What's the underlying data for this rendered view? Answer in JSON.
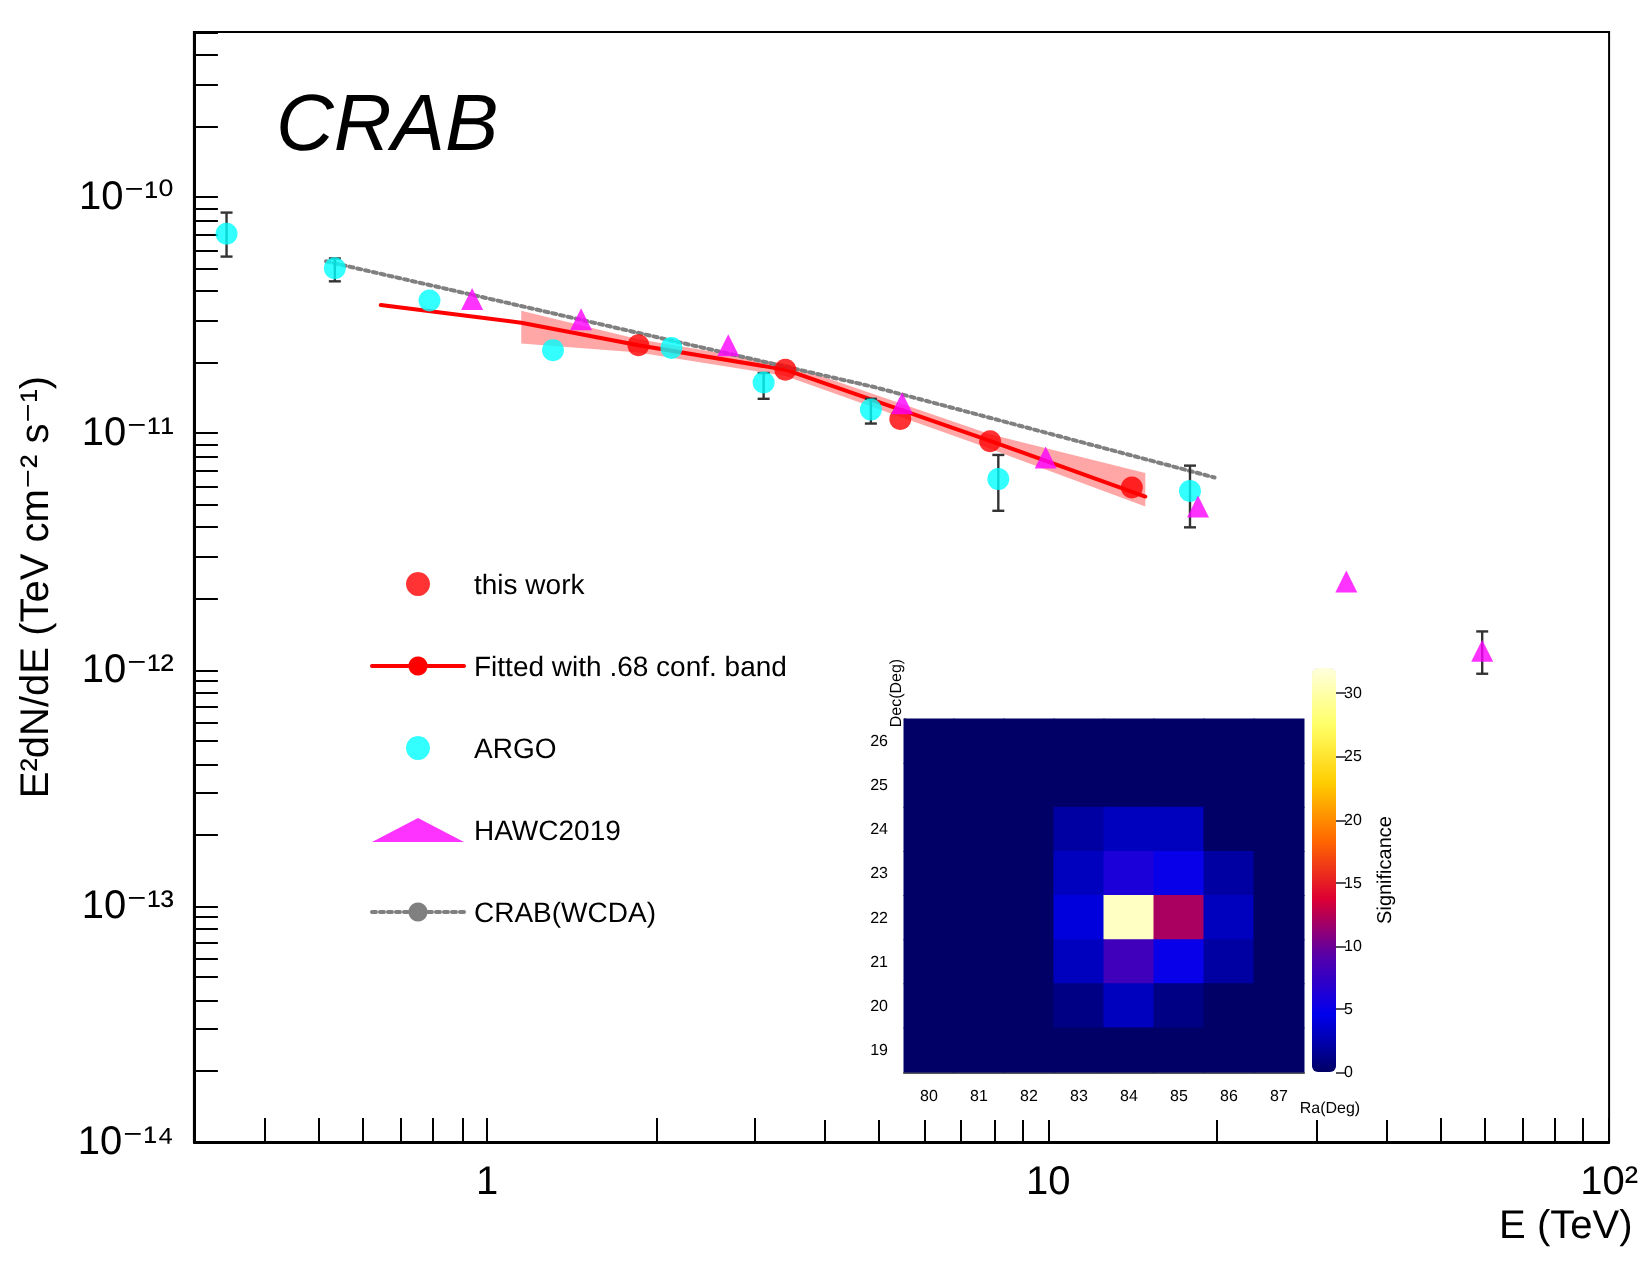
{
  "chart_data": [
    {
      "type": "scatter",
      "ylabel": "E²dN/dE (TeV cm⁻² s⁻¹)",
      "xlabel": "E (TeV)",
      "annotations": [
        "CRAB"
      ],
      "log": "xy",
      "grid": false,
      "legend": "left",
      "xlim": [
        0.3,
        100
      ],
      "ylim": [
        1e-14,
        5e-10
      ],
      "xticks": [
        {
          "value": 0.3,
          "label": null
        },
        {
          "value": 0.4,
          "label": null
        },
        {
          "value": 0.5,
          "label": null
        },
        {
          "value": 0.6,
          "label": null
        },
        {
          "value": 0.7,
          "label": null
        },
        {
          "value": 0.8,
          "label": null
        },
        {
          "value": 0.9,
          "label": null
        },
        1,
        {
          "value": 2,
          "label": null
        },
        {
          "value": 3,
          "label": null
        },
        {
          "value": 4,
          "label": null
        },
        {
          "value": 5,
          "label": null
        },
        {
          "value": 6,
          "label": null
        },
        {
          "value": 7,
          "label": null
        },
        {
          "value": 8,
          "label": null
        },
        {
          "value": 9,
          "label": null
        },
        10,
        {
          "value": 20,
          "label": null
        },
        {
          "value": 30,
          "label": null
        },
        {
          "value": 40,
          "label": null
        },
        {
          "value": 50,
          "label": null
        },
        {
          "value": 60,
          "label": null
        },
        {
          "value": 70,
          "label": null
        },
        {
          "value": 80,
          "label": null
        },
        {
          "value": 90,
          "label": null
        },
        {
          "value": 100,
          "label": "10²"
        }
      ],
      "yticks": [
        {
          "value": 1e-14,
          "label": "10⁻¹⁴"
        },
        {
          "value": 2e-14,
          "label": null
        },
        {
          "value": 3e-14,
          "label": null
        },
        {
          "value": 4e-14,
          "label": null
        },
        {
          "value": 5e-14,
          "label": null
        },
        {
          "value": 6e-14,
          "label": null
        },
        {
          "value": 7e-14,
          "label": null
        },
        {
          "value": 8e-14,
          "label": null
        },
        {
          "value": 9e-14,
          "label": null
        },
        {
          "value": 1e-13,
          "label": "10⁻¹³"
        },
        {
          "value": 2e-13,
          "label": null
        },
        {
          "value": 3e-13,
          "label": null
        },
        {
          "value": 4e-13,
          "label": null
        },
        {
          "value": 5e-13,
          "label": null
        },
        {
          "value": 6e-13,
          "label": null
        },
        {
          "value": 7e-13,
          "label": null
        },
        {
          "value": 8e-13,
          "label": null
        },
        {
          "value": 9e-13,
          "label": null
        },
        {
          "value": 1e-12,
          "label": "10⁻¹²"
        },
        {
          "value": 2e-12,
          "label": null
        },
        {
          "value": 3e-12,
          "label": null
        },
        {
          "value": 4e-12,
          "label": null
        },
        {
          "value": 5e-12,
          "label": null
        },
        {
          "value": 6e-12,
          "label": null
        },
        {
          "value": 7e-12,
          "label": null
        },
        {
          "value": 8e-12,
          "label": null
        },
        {
          "value": 9e-12,
          "label": null
        },
        {
          "value": 1e-11,
          "label": "10⁻¹¹"
        },
        {
          "value": 2e-11,
          "label": null
        },
        {
          "value": 3e-11,
          "label": null
        },
        {
          "value": 4e-11,
          "label": null
        },
        {
          "value": 5e-11,
          "label": null
        },
        {
          "value": 6e-11,
          "label": null
        },
        {
          "value": 7e-11,
          "label": null
        },
        {
          "value": 8e-11,
          "label": null
        },
        {
          "value": 9e-11,
          "label": null
        },
        {
          "value": 1e-10,
          "label": "10⁻¹⁰"
        },
        {
          "value": 2e-10,
          "label": null
        },
        {
          "value": 3e-10,
          "label": null
        },
        {
          "value": 4e-10,
          "label": null
        },
        {
          "value": 5e-10,
          "label": null
        }
      ],
      "series": [
        {
          "name": "this work",
          "type": "scatter",
          "marker": "circle",
          "color": "#ff0000",
          "x": [
            1.86,
            3.4,
            5.45,
            7.88,
            14.1
          ],
          "values": [
            2.36e-11,
            1.86e-11,
            1.15e-11,
            9.25e-12,
            5.9e-12
          ]
        },
        {
          "name": "Fitted with .68 conf. band",
          "type": "line",
          "marker": "none",
          "line_style": "solid",
          "color": "#ff0000",
          "x": [
            0.646,
            1.15,
            1.86,
            3.4,
            7.88,
            14.9
          ],
          "values": [
            3.49e-11,
            2.94e-11,
            2.36e-11,
            1.86e-11,
            9.3e-12,
            5.4e-12
          ],
          "lower": [
            null,
            2.4e-11,
            2.2e-11,
            1.75e-11,
            8.6e-12,
            4.9e-12
          ],
          "upper": [
            null,
            3.3e-11,
            2.5e-11,
            1.97e-11,
            9.9e-12,
            6.8e-12
          ]
        },
        {
          "name": "ARGO",
          "type": "scatter",
          "marker": "circle",
          "color": "#00ffff",
          "x": [
            0.343,
            0.535,
            0.789,
            1.31,
            2.13,
            3.11,
            4.83,
            8.15,
            17.9
          ],
          "values": [
            7e-11,
            5e-11,
            3.65e-11,
            2.25e-11,
            2.3e-11,
            1.64e-11,
            1.26e-11,
            6.4e-12,
            5.7e-12
          ],
          "errors": [
            [
              5.6e-11,
              8.6e-11
            ],
            [
              4.4e-11,
              5.5e-11
            ],
            null,
            null,
            null,
            [
              1.4e-11,
              1.8e-11
            ],
            [
              1.1e-11,
              1.4e-11
            ],
            [
              4.7e-12,
              8.1e-12
            ],
            [
              4e-12,
              7.3e-12
            ]
          ]
        },
        {
          "name": "HAWC2019",
          "type": "scatter",
          "marker": "triangle",
          "color": "#ff00ff",
          "x": [
            0.94,
            1.47,
            2.69,
            5.49,
            9.9,
            18.5,
            34.0,
            59.4
          ],
          "values": [
            3.7e-11,
            3.04e-11,
            2.36e-11,
            1.34e-11,
            7.9e-12,
            4.9e-12,
            2.36e-12,
            1.2e-12
          ],
          "errors": [
            null,
            null,
            null,
            null,
            null,
            null,
            null,
            [
              9.6e-13,
              1.45e-12
            ]
          ]
        },
        {
          "name": "CRAB(WCDA)",
          "type": "line",
          "marker": "none",
          "line_style": "dotted",
          "color": "#808080",
          "x": [
            0.516,
            4.9,
            19.8
          ],
          "values": [
            5.35e-11,
            1.57e-11,
            6.5e-12
          ]
        }
      ]
    },
    {
      "type": "heatmap",
      "xlabel": "Ra(Deg)",
      "ylabel": "Dec(Deg)",
      "clabel": "Significance",
      "categories": [
        "80",
        "81",
        "82",
        "83",
        "84",
        "85",
        "86",
        "87"
      ],
      "y_categories": [
        "26",
        "25",
        "24",
        "23",
        "22",
        "21",
        "20",
        "19"
      ],
      "clim": [
        0,
        32
      ],
      "cticks": [
        0,
        5,
        10,
        15,
        20,
        25,
        30
      ],
      "cells": [
        [
          0,
          0,
          0,
          0,
          0,
          0,
          0,
          0
        ],
        [
          0,
          0,
          0,
          0,
          0,
          0,
          0,
          0
        ],
        [
          0,
          0,
          0,
          2,
          3,
          3,
          0,
          0
        ],
        [
          0,
          0,
          0,
          3,
          6,
          5,
          2,
          0
        ],
        [
          0,
          0,
          0,
          4,
          31,
          12,
          3,
          0
        ],
        [
          0,
          0,
          0,
          3,
          8,
          5,
          2,
          0
        ],
        [
          0,
          0,
          0,
          1,
          3,
          1,
          0,
          0
        ],
        [
          0,
          0,
          0,
          0,
          0,
          0,
          0,
          0
        ]
      ]
    }
  ]
}
